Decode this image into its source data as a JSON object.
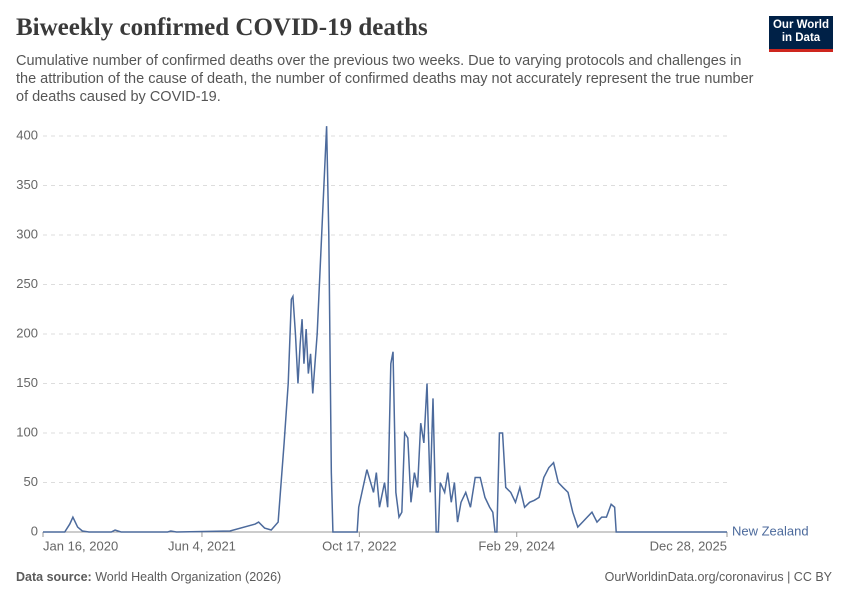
{
  "chart_data": {
    "type": "line",
    "title": "Biweekly confirmed COVID-19 deaths",
    "subtitle": "Cumulative number of confirmed deaths over the previous two weeks. Due to varying protocols and challenges in the attribution of the cause of death, the number of confirmed deaths may not accurately represent the true number of deaths caused by COVID-19.",
    "logo": [
      "Our World",
      "in Data"
    ],
    "source_label": "Data source:",
    "source": "World Health Organization (2026)",
    "credit": "OurWorldinData.org/coronavirus | CC BY",
    "x": [
      "2020-01-16",
      "2020-03-25",
      "2020-04-10",
      "2020-04-20",
      "2020-05-05",
      "2020-05-20",
      "2020-06-10",
      "2020-08-20",
      "2020-09-01",
      "2020-09-20",
      "2021-02-15",
      "2021-02-25",
      "2021-03-15",
      "2021-09-01",
      "2021-11-20",
      "2021-12-01",
      "2021-12-20",
      "2022-01-10",
      "2022-02-01",
      "2022-02-20",
      "2022-03-05",
      "2022-03-15",
      "2022-03-20",
      "2022-03-28",
      "2022-04-05",
      "2022-04-12",
      "2022-04-18",
      "2022-04-24",
      "2022-05-01",
      "2022-05-08",
      "2022-05-15",
      "2022-05-22",
      "2022-05-29",
      "2022-06-05",
      "2022-06-15",
      "2022-06-25",
      "2022-07-05",
      "2022-07-12",
      "2022-07-20",
      "2022-07-25",
      "2022-10-10",
      "2022-10-15",
      "2022-11-10",
      "2022-12-01",
      "2022-12-10",
      "2022-12-20",
      "2023-01-05",
      "2023-01-15",
      "2023-01-25",
      "2023-02-01",
      "2023-02-10",
      "2023-02-20",
      "2023-03-01",
      "2023-03-10",
      "2023-03-20",
      "2023-03-30",
      "2023-04-10",
      "2023-04-20",
      "2023-04-30",
      "2023-05-10",
      "2023-05-20",
      "2023-05-30",
      "2023-06-08",
      "2023-06-18",
      "2023-06-25",
      "2023-07-01",
      "2023-07-15",
      "2023-07-25",
      "2023-08-05",
      "2023-08-15",
      "2023-08-25",
      "2023-09-05",
      "2023-09-20",
      "2023-10-05",
      "2023-10-20",
      "2023-11-05",
      "2023-11-20",
      "2023-12-05",
      "2023-12-15",
      "2023-12-22",
      "2023-12-28",
      "2024-01-05",
      "2024-01-15",
      "2024-01-25",
      "2024-02-10",
      "2024-02-25",
      "2024-03-10",
      "2024-03-25",
      "2024-04-10",
      "2024-04-25",
      "2024-05-10",
      "2024-05-25",
      "2024-06-10",
      "2024-06-25",
      "2024-07-10",
      "2024-07-25",
      "2024-08-10",
      "2024-08-25",
      "2024-09-10",
      "2024-09-25",
      "2024-10-10",
      "2024-10-25",
      "2024-11-10",
      "2024-11-25",
      "2024-12-10",
      "2024-12-25",
      "2025-01-05",
      "2025-01-10",
      "2025-12-28"
    ],
    "series": [
      {
        "name": "New Zealand",
        "color": "#4c6a9c",
        "values": [
          0,
          0,
          8,
          15,
          5,
          1,
          0,
          0,
          2,
          0,
          0,
          1,
          0,
          1,
          8,
          10,
          4,
          2,
          10,
          90,
          150,
          235,
          238,
          200,
          150,
          190,
          215,
          170,
          205,
          160,
          180,
          140,
          170,
          200,
          270,
          340,
          410,
          300,
          60,
          0,
          0,
          25,
          63,
          40,
          60,
          25,
          50,
          25,
          170,
          182,
          40,
          15,
          20,
          100,
          95,
          30,
          60,
          45,
          110,
          90,
          150,
          40,
          135,
          0,
          0,
          50,
          40,
          60,
          30,
          50,
          10,
          30,
          40,
          25,
          55,
          55,
          35,
          25,
          20,
          0,
          0,
          100,
          100,
          45,
          40,
          30,
          45,
          25,
          30,
          32,
          35,
          55,
          65,
          70,
          50,
          45,
          40,
          20,
          5,
          10,
          15,
          20,
          10,
          15,
          15,
          28,
          25,
          0,
          0
        ]
      }
    ],
    "xlim": [
      "2020-01-16",
      "2025-12-28"
    ],
    "xticks": [
      {
        "value": "2020-01-16",
        "label": "Jan 16, 2020"
      },
      {
        "value": "2021-06-04",
        "label": "Jun 4, 2021"
      },
      {
        "value": "2022-10-17",
        "label": "Oct 17, 2022"
      },
      {
        "value": "2024-02-29",
        "label": "Feb 29, 2024"
      },
      {
        "value": "2025-12-28",
        "label": "Dec 28, 2025"
      }
    ],
    "ylim": [
      0,
      400
    ],
    "yticks": [
      0,
      50,
      100,
      150,
      200,
      250,
      300,
      350,
      400
    ],
    "grid": true
  }
}
